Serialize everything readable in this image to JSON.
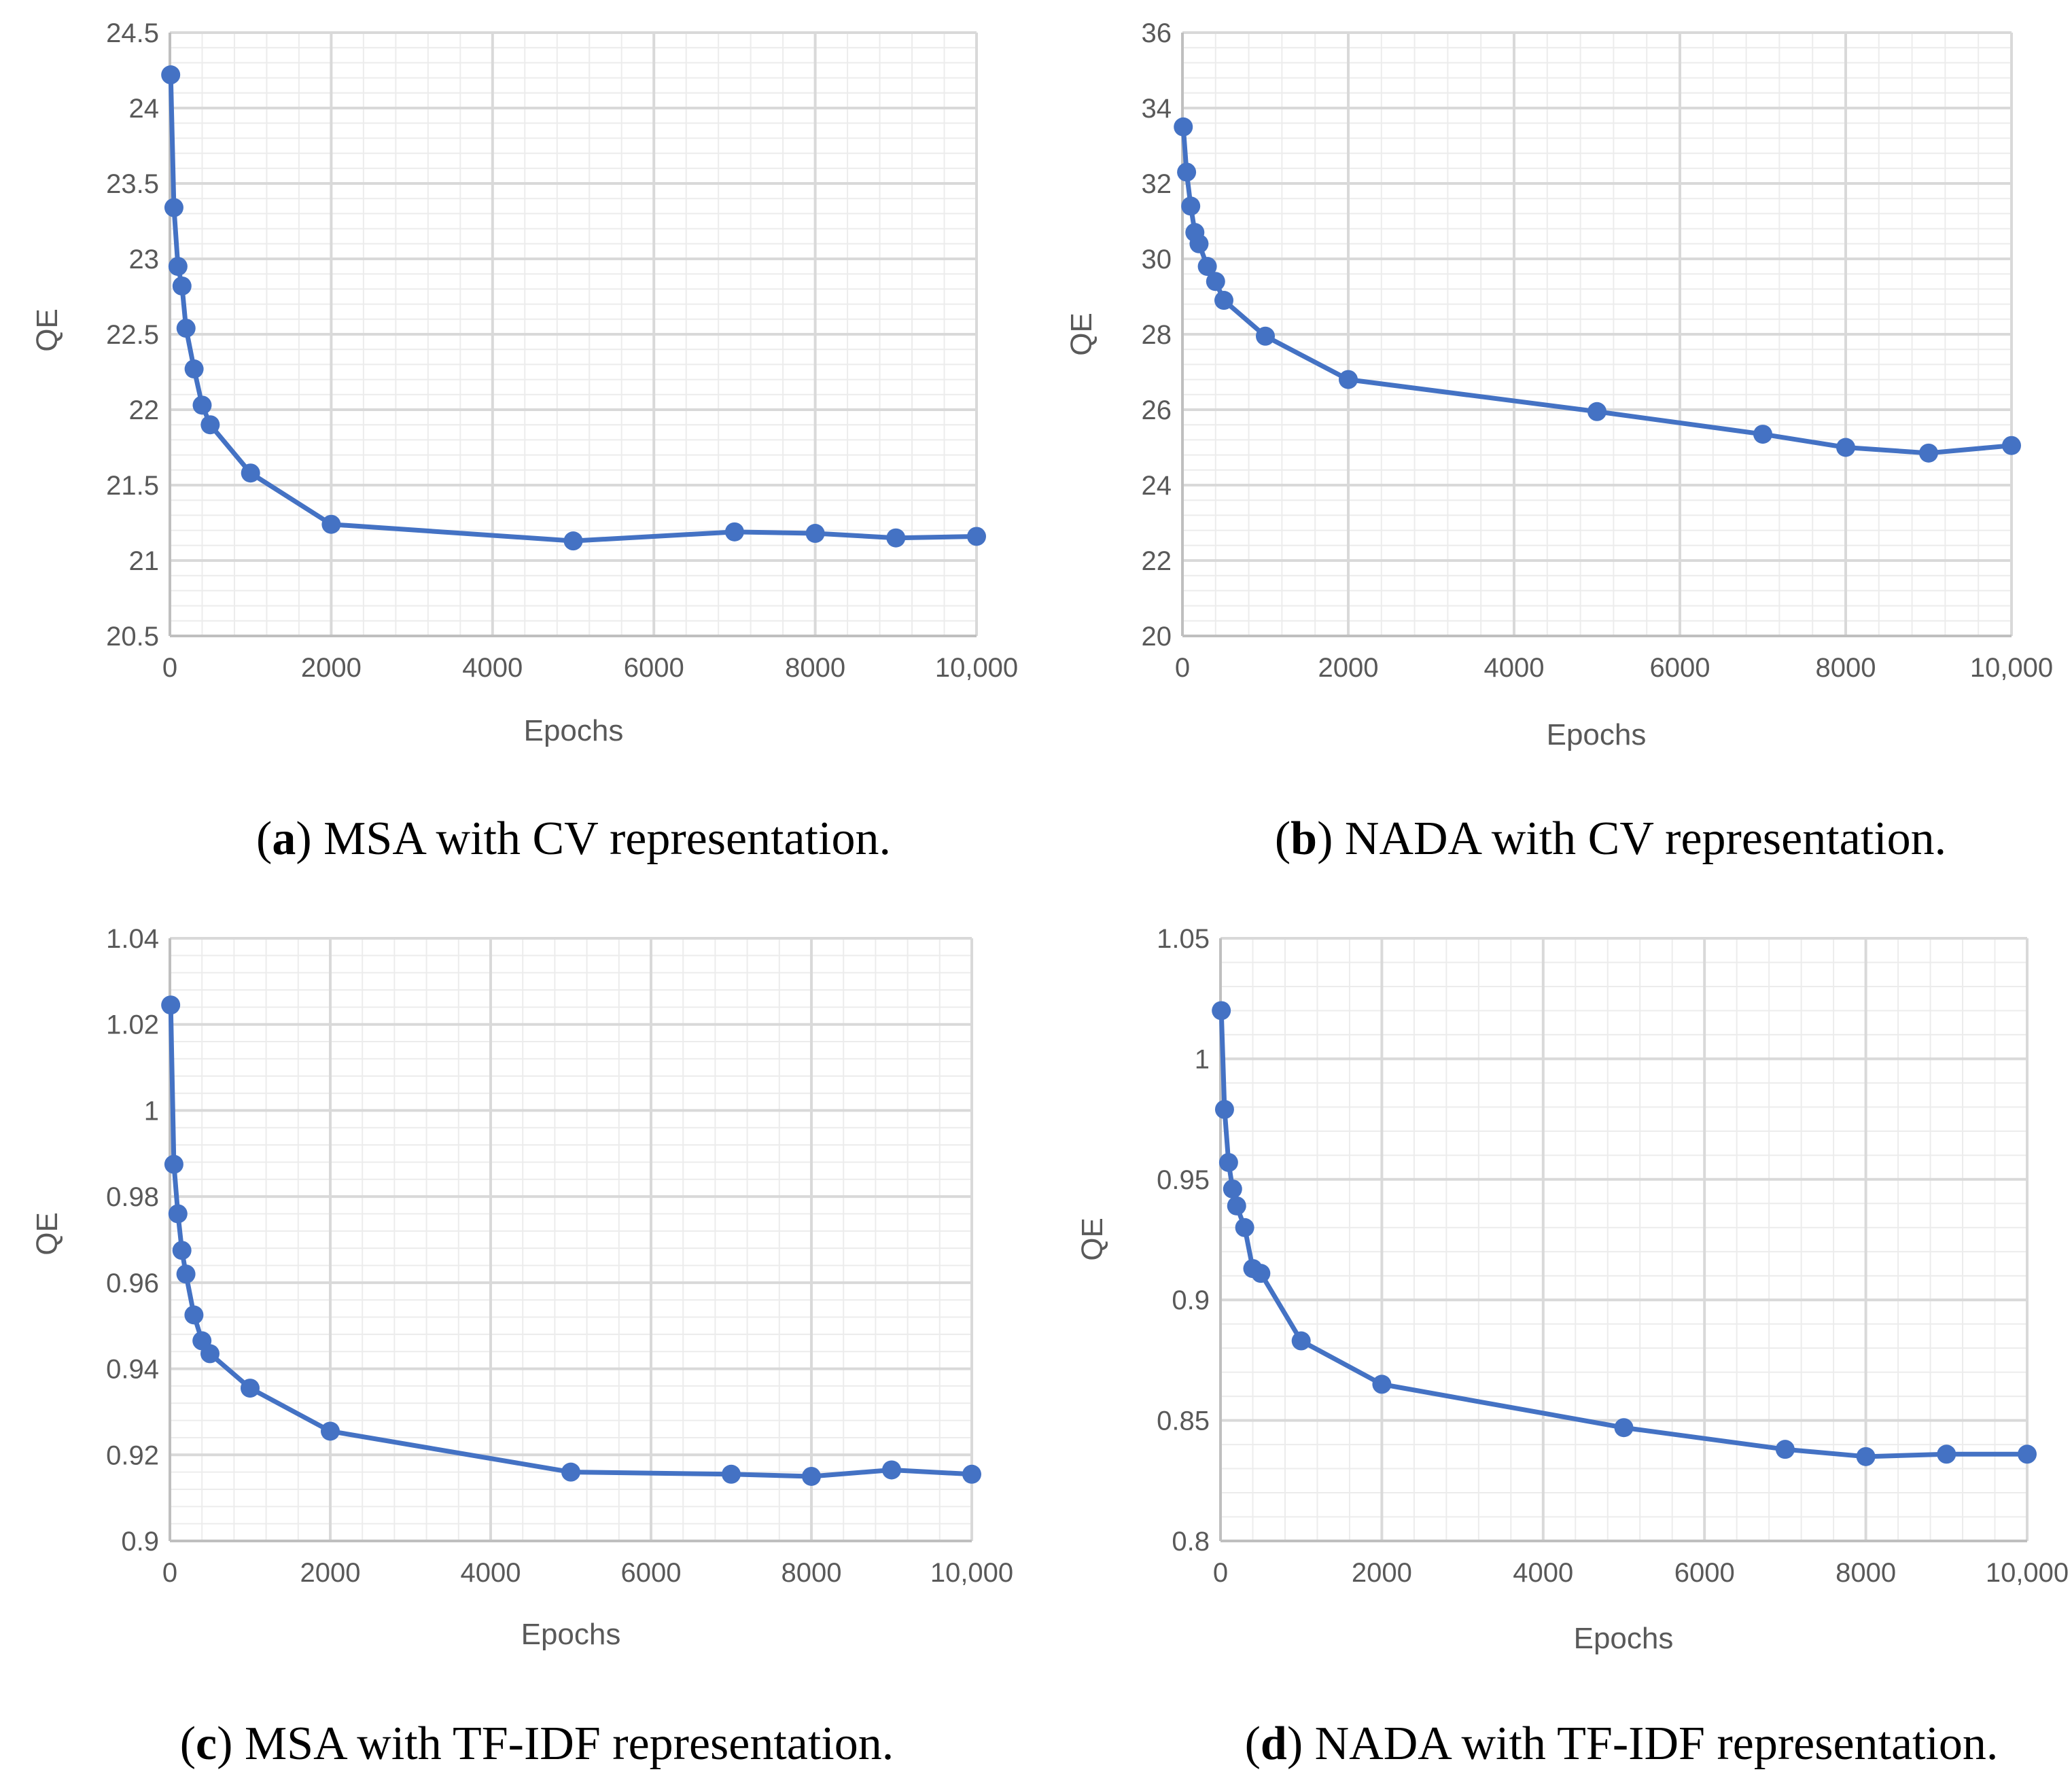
{
  "colors": {
    "series": "#4472c4"
  },
  "chart_data": [
    {
      "id": "a",
      "type": "line",
      "caption_letter": "a",
      "caption_text": "MSA with CV representation.",
      "xlabel": "Epochs",
      "ylabel": "QE",
      "xlim": [
        0,
        10000
      ],
      "ylim": [
        20.5,
        24.5
      ],
      "x_ticks": [
        0,
        2000,
        4000,
        6000,
        8000,
        10000
      ],
      "x_tick_labels": [
        "0",
        "2000",
        "4000",
        "6000",
        "8000",
        "10,000"
      ],
      "y_ticks": [
        20.5,
        21,
        21.5,
        22,
        22.5,
        23,
        23.5,
        24,
        24.5
      ],
      "y_tick_labels": [
        "20.5",
        "21",
        "21.5",
        "22",
        "22.5",
        "23",
        "23.5",
        "24",
        "24.5"
      ],
      "x": [
        10,
        50,
        100,
        150,
        200,
        300,
        400,
        500,
        1000,
        2000,
        5000,
        7000,
        8000,
        9000,
        10000
      ],
      "y": [
        24.22,
        23.34,
        22.95,
        22.82,
        22.54,
        22.27,
        22.03,
        21.9,
        21.58,
        21.24,
        21.13,
        21.19,
        21.18,
        21.15,
        21.16
      ]
    },
    {
      "id": "b",
      "type": "line",
      "caption_letter": "b",
      "caption_text": "NADA with CV representation.",
      "xlabel": "Epochs",
      "ylabel": "QE",
      "xlim": [
        0,
        10000
      ],
      "ylim": [
        20,
        36
      ],
      "x_ticks": [
        0,
        2000,
        4000,
        6000,
        8000,
        10000
      ],
      "x_tick_labels": [
        "0",
        "2000",
        "4000",
        "6000",
        "8000",
        "10,000"
      ],
      "y_ticks": [
        20,
        22,
        24,
        26,
        28,
        30,
        32,
        34,
        36
      ],
      "y_tick_labels": [
        "20",
        "22",
        "24",
        "26",
        "28",
        "30",
        "32",
        "34",
        "36"
      ],
      "x": [
        10,
        50,
        100,
        150,
        200,
        300,
        400,
        500,
        1000,
        2000,
        5000,
        7000,
        8000,
        9000,
        10000
      ],
      "y": [
        33.5,
        32.3,
        31.4,
        30.7,
        30.4,
        29.8,
        29.4,
        28.9,
        27.95,
        26.8,
        25.95,
        25.35,
        25.0,
        24.85,
        25.05
      ]
    },
    {
      "id": "c",
      "type": "line",
      "caption_letter": "c",
      "caption_text": "MSA with TF-IDF representation.",
      "xlabel": "Epochs",
      "ylabel": "QE",
      "xlim": [
        0,
        10000
      ],
      "ylim": [
        0.9,
        1.04
      ],
      "x_ticks": [
        0,
        2000,
        4000,
        6000,
        8000,
        10000
      ],
      "x_tick_labels": [
        "0",
        "2000",
        "4000",
        "6000",
        "8000",
        "10,000"
      ],
      "y_ticks": [
        0.9,
        0.92,
        0.94,
        0.96,
        0.98,
        1.0,
        1.02,
        1.04
      ],
      "y_tick_labels": [
        "0.9",
        "0.92",
        "0.94",
        "0.96",
        "0.98",
        "1",
        "1.02",
        "1.04"
      ],
      "x": [
        10,
        50,
        100,
        150,
        200,
        300,
        400,
        500,
        1000,
        2000,
        5000,
        7000,
        8000,
        9000,
        10000
      ],
      "y": [
        1.0245,
        0.9875,
        0.976,
        0.9675,
        0.962,
        0.9525,
        0.9465,
        0.9435,
        0.9355,
        0.9255,
        0.916,
        0.9155,
        0.915,
        0.9165,
        0.9155
      ]
    },
    {
      "id": "d",
      "type": "line",
      "caption_letter": "d",
      "caption_text": "NADA with TF-IDF representation.",
      "xlabel": "Epochs",
      "ylabel": "QE",
      "xlim": [
        0,
        10000
      ],
      "ylim": [
        0.8,
        1.05
      ],
      "x_ticks": [
        0,
        2000,
        4000,
        6000,
        8000,
        10000
      ],
      "x_tick_labels": [
        "0",
        "2000",
        "4000",
        "6000",
        "8000",
        "10,000"
      ],
      "y_ticks": [
        0.8,
        0.85,
        0.9,
        0.95,
        1.0,
        1.05
      ],
      "y_tick_labels": [
        "0.8",
        "0.85",
        "0.9",
        "0.95",
        "1",
        "1.05"
      ],
      "x": [
        10,
        50,
        100,
        150,
        200,
        300,
        400,
        500,
        1000,
        2000,
        5000,
        7000,
        8000,
        9000,
        10000
      ],
      "y": [
        1.02,
        0.979,
        0.957,
        0.946,
        0.939,
        0.93,
        0.913,
        0.911,
        0.883,
        0.865,
        0.847,
        0.838,
        0.835,
        0.836,
        0.836
      ]
    }
  ]
}
